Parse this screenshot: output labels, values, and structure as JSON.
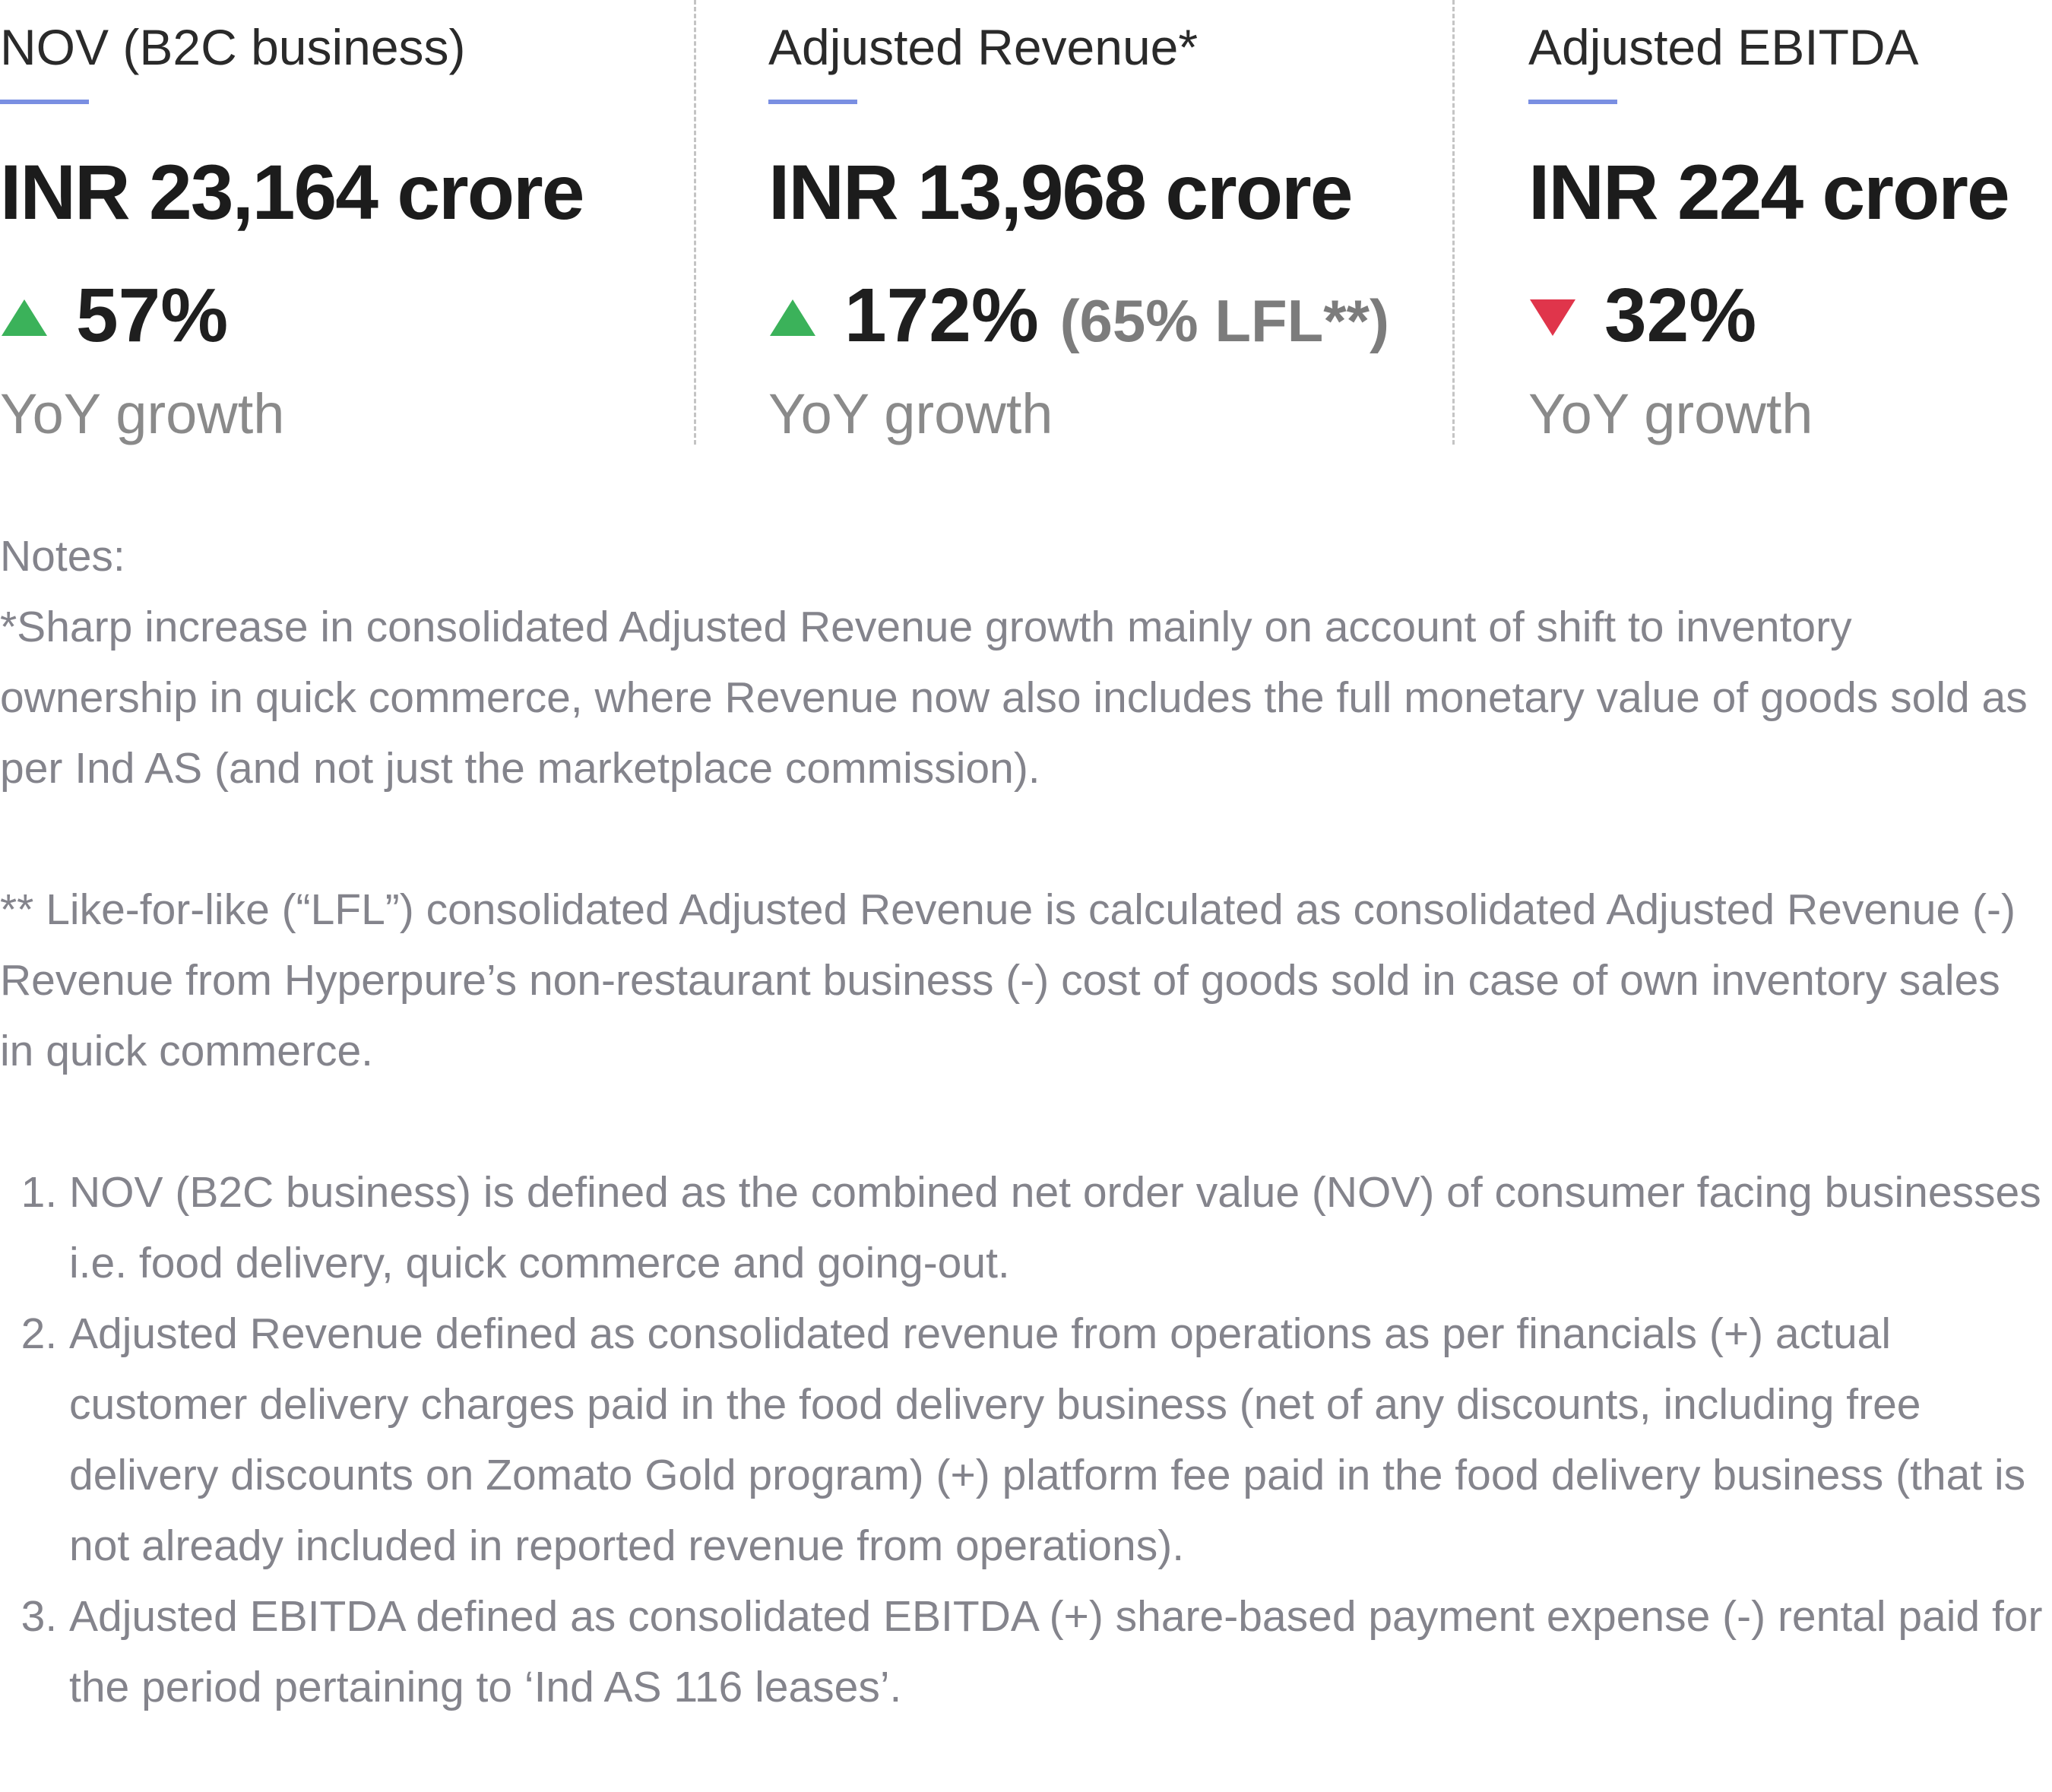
{
  "metrics": [
    {
      "label": "NOV (B2C business)",
      "value": "INR 23,164 crore",
      "direction": "up",
      "change": "57%",
      "caption": "YoY growth"
    },
    {
      "label": "Adjusted Revenue*",
      "value": "INR 13,968 crore",
      "direction": "up",
      "change": "172%",
      "change_note": "(65% LFL**)",
      "caption": "YoY growth"
    },
    {
      "label": "Adjusted EBITDA",
      "value": "INR 224 crore",
      "direction": "down",
      "change": "32%",
      "caption": "YoY growth"
    }
  ],
  "notes": {
    "heading": "Notes:",
    "paragraphs": [
      "*Sharp increase in consolidated Adjusted Revenue growth mainly on account of shift to inventory ownership in quick commerce, where Revenue now also includes the full monetary value of goods sold as per Ind AS (and not just the marketplace commission).",
      "** Like-for-like (“LFL”) consolidated Adjusted Revenue is calculated as consolidated Adjusted Revenue (-) Revenue from Hyperpure’s non-restaurant business (-) cost of goods sold in case of own inventory sales in quick commerce."
    ],
    "list": [
      "NOV (B2C business) is defined as the combined net order value (NOV) of consumer facing businesses i.e. food delivery, quick commerce and going-out.",
      "Adjusted Revenue defined as consolidated revenue from operations as per financials (+) actual customer delivery charges paid in the food delivery business (net of any discounts, including free delivery discounts on Zomato Gold program) (+) platform fee paid in the food delivery business (that is not already included in reported revenue from operations).",
      "Adjusted EBITDA defined as consolidated EBITDA (+) share-based payment expense (-) rental paid for the period pertaining to ‘Ind AS 116 leases’."
    ]
  }
}
